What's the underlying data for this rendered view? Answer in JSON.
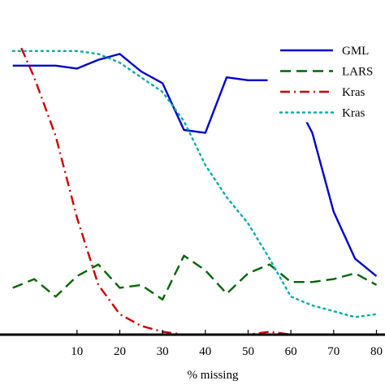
{
  "chart_data": {
    "type": "line",
    "title": "",
    "xlabel": "% missing",
    "ylabel": "",
    "xlim": [
      -8,
      82
    ],
    "ylim": [
      0,
      1.0
    ],
    "x_ticks": [
      10,
      20,
      30,
      40,
      50,
      60,
      70,
      80
    ],
    "x_tick_labels": [
      "10",
      "20",
      "30",
      "40",
      "50",
      "60",
      "70",
      "80"
    ],
    "grid": false,
    "legend_position": "top-right",
    "series": [
      {
        "name": "GML",
        "color": "#0000cc",
        "style": "solid",
        "x": [
          -5,
          0,
          5,
          10,
          15,
          20,
          25,
          30,
          35,
          40,
          45,
          50,
          55,
          60,
          65,
          70,
          75,
          80
        ],
        "y": [
          0.92,
          0.92,
          0.92,
          0.91,
          0.94,
          0.96,
          0.9,
          0.86,
          0.7,
          0.69,
          0.88,
          0.87,
          0.87,
          0.83,
          0.69,
          0.42,
          0.26,
          0.2
        ]
      },
      {
        "name": "LARS",
        "color": "#006600",
        "style": "dashed",
        "x": [
          -5,
          0,
          5,
          10,
          15,
          20,
          25,
          30,
          35,
          40,
          45,
          50,
          55,
          60,
          65,
          70,
          75,
          80
        ],
        "y": [
          0.16,
          0.19,
          0.13,
          0.2,
          0.24,
          0.16,
          0.17,
          0.12,
          0.27,
          0.22,
          0.14,
          0.21,
          0.24,
          0.18,
          0.18,
          0.19,
          0.21,
          0.17
        ]
      },
      {
        "name": "Kras",
        "color": "#cc0000",
        "style": "dashdot",
        "x": [
          -3,
          0,
          5,
          10,
          15,
          20,
          25,
          30,
          35,
          40,
          45,
          50,
          55,
          60,
          65,
          70,
          75,
          80
        ],
        "y": [
          0.98,
          0.88,
          0.68,
          0.4,
          0.17,
          0.07,
          0.03,
          0.01,
          0.0,
          0.0,
          0.0,
          0.0,
          0.01,
          0.0,
          0.0,
          0.0,
          0.0,
          0.0
        ]
      },
      {
        "name": "Kras",
        "color": "#00aaaa",
        "style": "dotted",
        "x": [
          -5,
          0,
          5,
          10,
          15,
          20,
          25,
          30,
          35,
          40,
          45,
          50,
          55,
          60,
          65,
          70,
          75,
          80
        ],
        "y": [
          0.97,
          0.97,
          0.97,
          0.97,
          0.96,
          0.93,
          0.88,
          0.83,
          0.73,
          0.58,
          0.47,
          0.38,
          0.26,
          0.13,
          0.1,
          0.08,
          0.06,
          0.07
        ]
      }
    ]
  }
}
